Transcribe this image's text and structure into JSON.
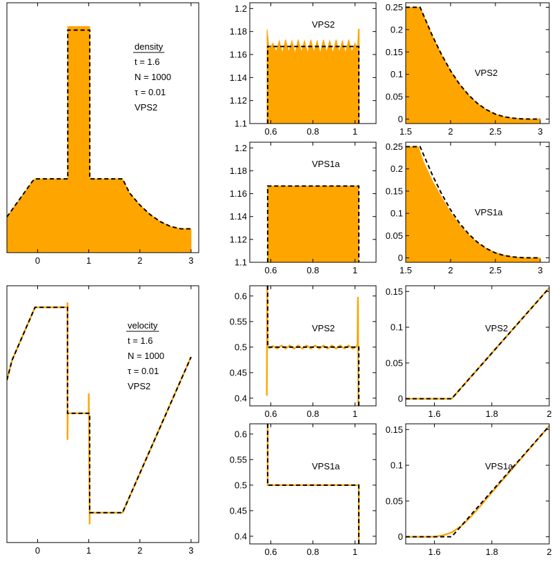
{
  "colors": {
    "fill": "#FFA500",
    "line": "#000000",
    "axis": "#000000",
    "background": "#ffffff"
  },
  "chart_data": [
    {
      "id": "density-full",
      "type": "area",
      "xlim": [
        -0.6,
        3.15
      ],
      "ylim": [
        0.98,
        1.19
      ],
      "xticks": [
        0,
        1,
        2,
        3
      ],
      "yticks": [],
      "annotation": {
        "lines": [
          "density",
          "t = 1.6",
          "N = 1000",
          "τ = 0.01",
          "VPS2"
        ],
        "underline_first": true
      },
      "series": [
        {
          "kind": "area",
          "x": [
            -0.6,
            -0.5,
            -0.4,
            -0.3,
            -0.2,
            -0.1,
            -0.05,
            0.59,
            0.59,
            0.6,
            1.02,
            1.02,
            1.66,
            1.8,
            2.0,
            2.2,
            2.4,
            2.6,
            2.8,
            2.9,
            3.0
          ],
          "y": [
            1.01,
            1.016,
            1.022,
            1.028,
            1.034,
            1.04,
            1.042,
            1.042,
            1.17,
            1.17,
            1.17,
            1.042,
            1.042,
            1.03,
            1.02,
            1.012,
            1.006,
            1.002,
            1.0,
            1.0,
            1.0
          ]
        },
        {
          "kind": "dashed",
          "x": [
            -0.6,
            -0.5,
            -0.4,
            -0.3,
            -0.2,
            -0.1,
            -0.05,
            0.59,
            0.59,
            1.02,
            1.02,
            1.66,
            1.8,
            2.0,
            2.2,
            2.4,
            2.6,
            2.8,
            2.9,
            3.0
          ],
          "y": [
            1.01,
            1.016,
            1.022,
            1.028,
            1.034,
            1.04,
            1.042,
            1.042,
            1.167,
            1.167,
            1.042,
            1.042,
            1.03,
            1.02,
            1.012,
            1.006,
            1.002,
            1.0,
            1.0,
            1.0
          ]
        }
      ]
    },
    {
      "id": "density-zoom-vps2",
      "type": "area",
      "xlim": [
        0.5,
        1.1
      ],
      "ylim": [
        1.1,
        1.205
      ],
      "xticks": [
        0.6,
        0.8,
        1
      ],
      "yticks": [
        1.1,
        1.12,
        1.14,
        1.16,
        1.18,
        1.2
      ],
      "annotation": {
        "lines": [
          "VPS2"
        ]
      },
      "series": [
        {
          "kind": "area",
          "x": [
            0.582,
            0.588,
            0.592,
            0.61,
            0.625,
            0.64,
            0.655,
            0.67,
            0.685,
            0.7,
            0.715,
            0.73,
            0.745,
            0.76,
            0.775,
            0.79,
            0.805,
            0.82,
            0.835,
            0.85,
            0.865,
            0.88,
            0.895,
            0.91,
            0.925,
            0.94,
            0.955,
            0.97,
            0.985,
            1.0,
            1.012,
            1.016,
            1.02
          ],
          "y": [
            1.182,
            1.172,
            1.164,
            1.17,
            1.162,
            1.172,
            1.161,
            1.173,
            1.162,
            1.172,
            1.161,
            1.173,
            1.162,
            1.172,
            1.161,
            1.173,
            1.162,
            1.172,
            1.161,
            1.173,
            1.162,
            1.172,
            1.161,
            1.173,
            1.162,
            1.172,
            1.161,
            1.173,
            1.162,
            1.17,
            1.165,
            1.182,
            1.182
          ]
        },
        {
          "kind": "dashed",
          "x": [
            0.585,
            0.585,
            1.018,
            1.018
          ],
          "y": [
            1.1,
            1.167,
            1.167,
            1.1
          ]
        }
      ]
    },
    {
      "id": "density-tail-vps2",
      "type": "area",
      "xlim": [
        1.5,
        3.1
      ],
      "ylim": [
        -0.01,
        0.26
      ],
      "xticks": [
        1.5,
        2,
        2.5,
        3
      ],
      "yticks": [
        0,
        0.05,
        0.1,
        0.15,
        0.2,
        0.25
      ],
      "annotation": {
        "lines": [
          "VPS2"
        ]
      },
      "series": [
        {
          "kind": "area",
          "x": [
            1.5,
            1.66,
            1.8,
            1.9,
            2.0,
            2.1,
            2.2,
            2.3,
            2.4,
            2.5,
            2.6,
            2.7,
            2.8,
            2.9,
            3.0
          ],
          "y": [
            0.25,
            0.25,
            0.185,
            0.144,
            0.108,
            0.078,
            0.054,
            0.035,
            0.021,
            0.011,
            0.005,
            0.002,
            0.0005,
            0.0,
            0.0
          ]
        },
        {
          "kind": "dashed",
          "x": [
            1.5,
            1.66,
            1.8,
            1.9,
            2.0,
            2.1,
            2.2,
            2.3,
            2.4,
            2.5,
            2.6,
            2.7,
            2.8,
            2.9,
            3.0
          ],
          "y": [
            0.25,
            0.25,
            0.185,
            0.144,
            0.108,
            0.078,
            0.054,
            0.035,
            0.021,
            0.011,
            0.005,
            0.002,
            0.0005,
            0.0,
            0.0
          ]
        }
      ]
    },
    {
      "id": "density-zoom-vps1a",
      "type": "area",
      "xlim": [
        0.5,
        1.1
      ],
      "ylim": [
        1.1,
        1.205
      ],
      "xticks": [
        0.6,
        0.8,
        1
      ],
      "yticks": [
        1.1,
        1.12,
        1.14,
        1.16,
        1.18,
        1.2
      ],
      "annotation": {
        "lines": [
          "VPS1a"
        ]
      },
      "series": [
        {
          "kind": "area",
          "x": [
            0.585,
            1.018
          ],
          "y": [
            1.1667,
            1.1667
          ]
        },
        {
          "kind": "dashed",
          "x": [
            0.585,
            0.585,
            1.018,
            1.018
          ],
          "y": [
            1.1,
            1.1667,
            1.1667,
            1.1
          ]
        }
      ]
    },
    {
      "id": "density-tail-vps1a",
      "type": "area",
      "xlim": [
        1.5,
        3.1
      ],
      "ylim": [
        -0.01,
        0.26
      ],
      "xticks": [
        1.5,
        2,
        2.5,
        3
      ],
      "yticks": [
        0,
        0.05,
        0.1,
        0.15,
        0.2,
        0.25
      ],
      "annotation": {
        "lines": [
          "VPS1a"
        ]
      },
      "series": [
        {
          "kind": "area",
          "x": [
            1.5,
            1.64,
            1.7,
            1.8,
            1.9,
            2.0,
            2.1,
            2.2,
            2.3,
            2.4,
            2.5,
            2.6,
            2.7,
            2.8,
            2.9,
            3.0
          ],
          "y": [
            0.25,
            0.25,
            0.215,
            0.172,
            0.136,
            0.102,
            0.074,
            0.052,
            0.034,
            0.021,
            0.012,
            0.006,
            0.002,
            0.0005,
            0.0,
            0.0
          ]
        },
        {
          "kind": "dashed",
          "x": [
            1.5,
            1.66,
            1.8,
            1.9,
            2.0,
            2.1,
            2.2,
            2.3,
            2.4,
            2.5,
            2.6,
            2.7,
            2.8,
            2.9,
            3.0
          ],
          "y": [
            0.25,
            0.25,
            0.185,
            0.144,
            0.108,
            0.078,
            0.054,
            0.035,
            0.021,
            0.011,
            0.005,
            0.002,
            0.0005,
            0.0,
            0.0
          ]
        }
      ]
    },
    {
      "id": "velocity-full",
      "type": "line",
      "xlim": [
        -0.6,
        3.15
      ],
      "ylim": [
        -0.9,
        0.65
      ],
      "xticks": [
        0,
        1,
        2,
        3
      ],
      "yticks": [],
      "annotation": {
        "lines": [
          "velocity",
          "t = 1.6",
          "N = 1000",
          "τ = 0.01",
          "VPS2"
        ],
        "underline_first": true
      },
      "series": [
        {
          "kind": "line",
          "x": [
            -0.6,
            -0.5,
            -0.05,
            0.585,
            0.585,
            0.585,
            0.59,
            1.0,
            1.0,
            1.018,
            1.018,
            1.018,
            1.66,
            3.0
          ],
          "y": [
            0.08,
            0.2,
            0.52,
            0.52,
            0.55,
            -0.28,
            -0.12,
            -0.12,
            0.0,
            -0.77,
            -0.79,
            -0.72,
            -0.72,
            0.22
          ]
        },
        {
          "kind": "dashed",
          "x": [
            -0.6,
            -0.5,
            -0.05,
            0.585,
            0.585,
            1.018,
            1.018,
            1.66,
            3.0
          ],
          "y": [
            0.08,
            0.2,
            0.52,
            0.52,
            -0.12,
            -0.12,
            -0.72,
            -0.72,
            0.22
          ]
        }
      ]
    },
    {
      "id": "velocity-zoom-vps2",
      "type": "line",
      "xlim": [
        0.5,
        1.1
      ],
      "ylim": [
        0.385,
        0.62
      ],
      "xticks": [
        0.6,
        0.8,
        1
      ],
      "yticks": [
        0.4,
        0.45,
        0.5,
        0.55,
        0.6
      ],
      "annotation": {
        "lines": [
          "VPS2"
        ]
      },
      "series": [
        {
          "kind": "line",
          "x": [
            0.581,
            0.583,
            0.585,
            0.595,
            0.61,
            0.63,
            0.65,
            0.67,
            0.69,
            0.71,
            0.73,
            0.75,
            0.77,
            0.79,
            0.81,
            0.83,
            0.85,
            0.87,
            0.89,
            0.91,
            0.93,
            0.95,
            0.97,
            0.99,
            1.005,
            1.012,
            1.014,
            1.016,
            1.018
          ],
          "y": [
            0.405,
            0.62,
            0.5,
            0.498,
            0.502,
            0.497,
            0.503,
            0.497,
            0.503,
            0.497,
            0.503,
            0.497,
            0.503,
            0.497,
            0.503,
            0.497,
            0.503,
            0.497,
            0.503,
            0.497,
            0.503,
            0.497,
            0.503,
            0.497,
            0.5,
            0.505,
            0.598,
            0.385,
            0.385
          ]
        },
        {
          "kind": "dashed",
          "x": [
            0.585,
            0.585,
            1.018,
            1.018
          ],
          "y": [
            0.62,
            0.5,
            0.5,
            0.385
          ]
        }
      ]
    },
    {
      "id": "velocity-tail-vps2",
      "type": "line",
      "xlim": [
        1.5,
        2.0
      ],
      "ylim": [
        -0.01,
        0.158
      ],
      "xticks": [
        1.6,
        1.8,
        2
      ],
      "yticks": [
        0,
        0.05,
        0.1,
        0.15
      ],
      "annotation": {
        "lines": [
          "VPS2"
        ]
      },
      "series": [
        {
          "kind": "line",
          "x": [
            1.5,
            1.66,
            2.0
          ],
          "y": [
            0.0,
            0.0,
            0.155
          ]
        },
        {
          "kind": "dashed",
          "x": [
            1.5,
            1.66,
            2.0
          ],
          "y": [
            0.0,
            0.0,
            0.155
          ]
        }
      ]
    },
    {
      "id": "velocity-zoom-vps1a",
      "type": "line",
      "xlim": [
        0.5,
        1.1
      ],
      "ylim": [
        0.385,
        0.62
      ],
      "xticks": [
        0.6,
        0.8,
        1
      ],
      "yticks": [
        0.4,
        0.45,
        0.5,
        0.55,
        0.6
      ],
      "annotation": {
        "lines": [
          "VPS1a"
        ]
      },
      "series": [
        {
          "kind": "line",
          "x": [
            0.585,
            0.585,
            1.018,
            1.018
          ],
          "y": [
            0.62,
            0.5,
            0.5,
            0.385
          ]
        },
        {
          "kind": "dashed",
          "x": [
            0.585,
            0.585,
            1.018,
            1.018
          ],
          "y": [
            0.62,
            0.5,
            0.5,
            0.385
          ]
        }
      ]
    },
    {
      "id": "velocity-tail-vps1a",
      "type": "line",
      "xlim": [
        1.5,
        2.0
      ],
      "ylim": [
        -0.01,
        0.158
      ],
      "xticks": [
        1.6,
        1.8,
        2
      ],
      "yticks": [
        0,
        0.05,
        0.1,
        0.15
      ],
      "annotation": {
        "lines": [
          "VPS1a"
        ]
      },
      "series": [
        {
          "kind": "line",
          "x": [
            1.5,
            1.6,
            1.63,
            1.66,
            1.69,
            1.72,
            1.76,
            1.8,
            2.0
          ],
          "y": [
            0.0,
            0.0,
            0.002,
            0.006,
            0.014,
            0.025,
            0.043,
            0.062,
            0.155
          ]
        },
        {
          "kind": "dashed",
          "x": [
            1.5,
            1.66,
            2.0
          ],
          "y": [
            0.0,
            0.0,
            0.155
          ]
        }
      ]
    }
  ]
}
